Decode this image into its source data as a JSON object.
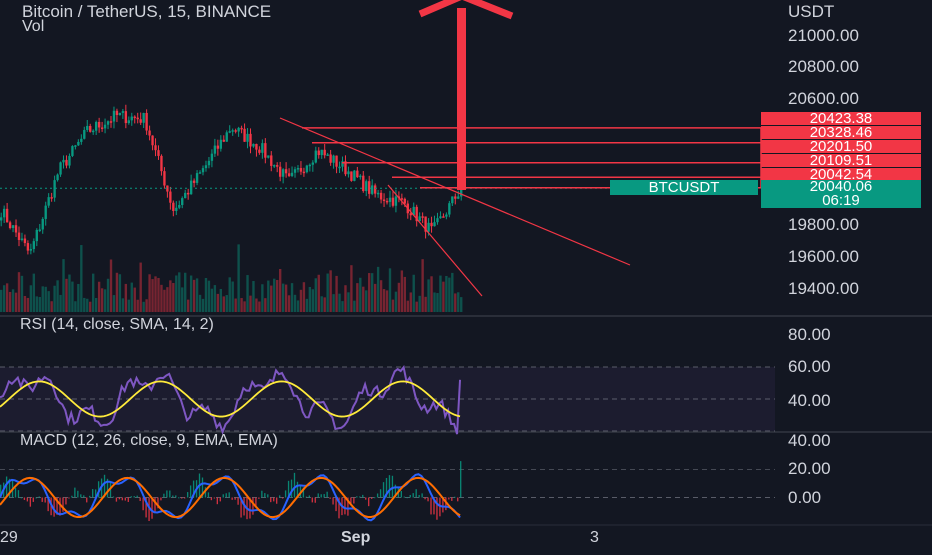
{
  "header": {
    "title": "Bitcoin / TetherUS, 15, BINANCE",
    "volume_label": "Vol",
    "currency": "USDT"
  },
  "price_axis": {
    "ticks": [
      "21000.00",
      "20800.00",
      "20600.00",
      "19800.00",
      "19600.00",
      "19400.00"
    ]
  },
  "level_badges": [
    "20423.38",
    "20328.46",
    "20201.50",
    "20109.51",
    "20042.54"
  ],
  "last_price": {
    "symbol": "BTCUSDT",
    "price": "20040.06",
    "countdown": "06:19"
  },
  "rsi": {
    "label": "RSI (14, close, SMA, 14, 2)",
    "ticks": [
      "80.00",
      "60.00",
      "40.00"
    ]
  },
  "macd": {
    "label": "MACD (12, 26, close, 9, EMA, EMA)",
    "ticks": [
      "40.00",
      "20.00",
      "0.00"
    ]
  },
  "time_axis": {
    "ticks": [
      "29",
      "Sep",
      "3"
    ]
  },
  "colors": {
    "background": "#131722",
    "up": "#089981",
    "down": "#f23645",
    "rsi_line": "#7e57c2",
    "rsi_ma": "#ffeb3b",
    "macd_line": "#2962ff",
    "signal_line": "#ff6d00",
    "arrow": "#f23645"
  },
  "chart_data": {
    "type": "candlestick",
    "title": "Bitcoin / TetherUS, 15, BINANCE",
    "x": [
      "29",
      "Sep",
      "3"
    ],
    "ylim": [
      19350,
      21150
    ],
    "series": [
      {
        "name": "Bitcoin / TetherUS",
        "type": "ohlc",
        "points_approx": [
          {
            "x": "29",
            "close": 19900
          },
          {
            "close": 19620
          },
          {
            "close": 20150
          },
          {
            "close": 20400
          },
          {
            "close": 20500
          },
          {
            "close": 20480
          },
          {
            "close": 19900
          },
          {
            "close": 20150
          },
          {
            "close": 20430
          },
          {
            "close": 20300
          },
          {
            "close": 20080
          },
          {
            "close": 20280
          },
          {
            "close": 20160
          },
          {
            "x": "Sep",
            "close": 20000
          },
          {
            "close": 19950
          },
          {
            "close": 19760
          },
          {
            "close": 20040.06
          }
        ]
      },
      {
        "name": "Vol",
        "type": "bar"
      }
    ],
    "annotations": {
      "horizontal_levels": [
        20423.38,
        20328.46,
        20201.5,
        20109.51,
        20042.54
      ],
      "trendline_upper": [
        {
          "x": "29",
          "y": 20420
        },
        {
          "x": "3",
          "y": 19650
        }
      ],
      "trendline_lower": [
        {
          "x": "Sep",
          "y": 20020
        },
        {
          "x": "3",
          "y": 19420
        }
      ],
      "arrow": "up"
    },
    "indicators": [
      {
        "name": "RSI",
        "label": "RSI (14, close, SMA, 14, 2)",
        "ylim": [
          30,
          85
        ],
        "bands": [
          70,
          30
        ],
        "last": 62
      },
      {
        "name": "MACD",
        "label": "MACD (12, 26, close, 9, EMA, EMA)",
        "ylim": [
          -18,
          42
        ],
        "last_histogram": 26
      }
    ]
  }
}
